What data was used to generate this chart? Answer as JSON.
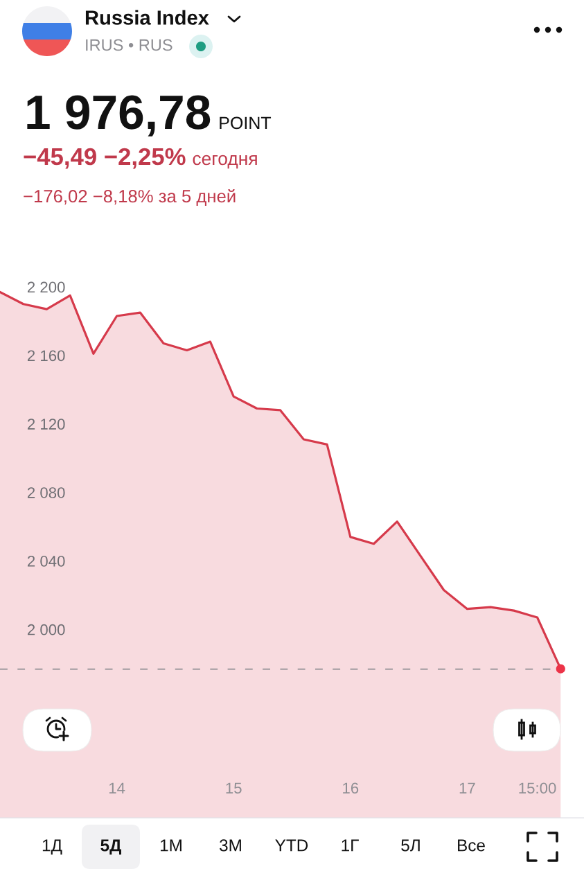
{
  "chart_data": {
    "type": "area",
    "title": "Russia Index",
    "subtitle": "IRUS • RUS",
    "annotations": [
      "1 976,78",
      "POINT",
      "−45,49 −2,25%",
      "сегодня",
      "−176,02 −8,18% за 5 дней",
      "1Д",
      "5Д",
      "1М",
      "3М",
      "YTD",
      "1Г",
      "5Л",
      "Все"
    ],
    "categories": [
      null,
      null,
      null,
      null,
      null,
      "14",
      null,
      null,
      null,
      null,
      "15",
      null,
      null,
      null,
      null,
      "16",
      null,
      null,
      null,
      null,
      "17",
      null,
      null,
      "15:00",
      null
    ],
    "series": [
      {
        "color": "#d63a4b",
        "values": [
          2197,
          2190,
          2187,
          2195,
          2161,
          2183,
          2185,
          2167,
          2163,
          2168,
          2136,
          2129,
          2128,
          2111,
          2108,
          2054,
          2050,
          2063,
          2043,
          2023,
          2012,
          2013,
          2011,
          2007,
          1977
        ]
      },
      {
        "type": "scatter",
        "color": "#ec3348",
        "marker": "circle",
        "values": [
          null,
          null,
          null,
          null,
          null,
          null,
          null,
          null,
          null,
          null,
          null,
          null,
          null,
          null,
          null,
          null,
          null,
          null,
          null,
          null,
          null,
          null,
          null,
          null,
          1977
        ]
      }
    ],
    "ylim": [
      1890,
      2200
    ],
    "yticks": [
      {
        "value": 2000,
        "label": "2 000"
      },
      {
        "value": 2040,
        "label": "2 040"
      },
      {
        "value": 2080,
        "label": "2 080"
      },
      {
        "value": 2120,
        "label": "2 120"
      },
      {
        "value": 2160,
        "label": "2 160"
      },
      {
        "value": 2200,
        "label": "2 200"
      }
    ],
    "ref_lines": [
      {
        "axis": "y",
        "value": 1976.78,
        "color": "#8e8e93",
        "line_style": "dashed"
      }
    ]
  }
}
